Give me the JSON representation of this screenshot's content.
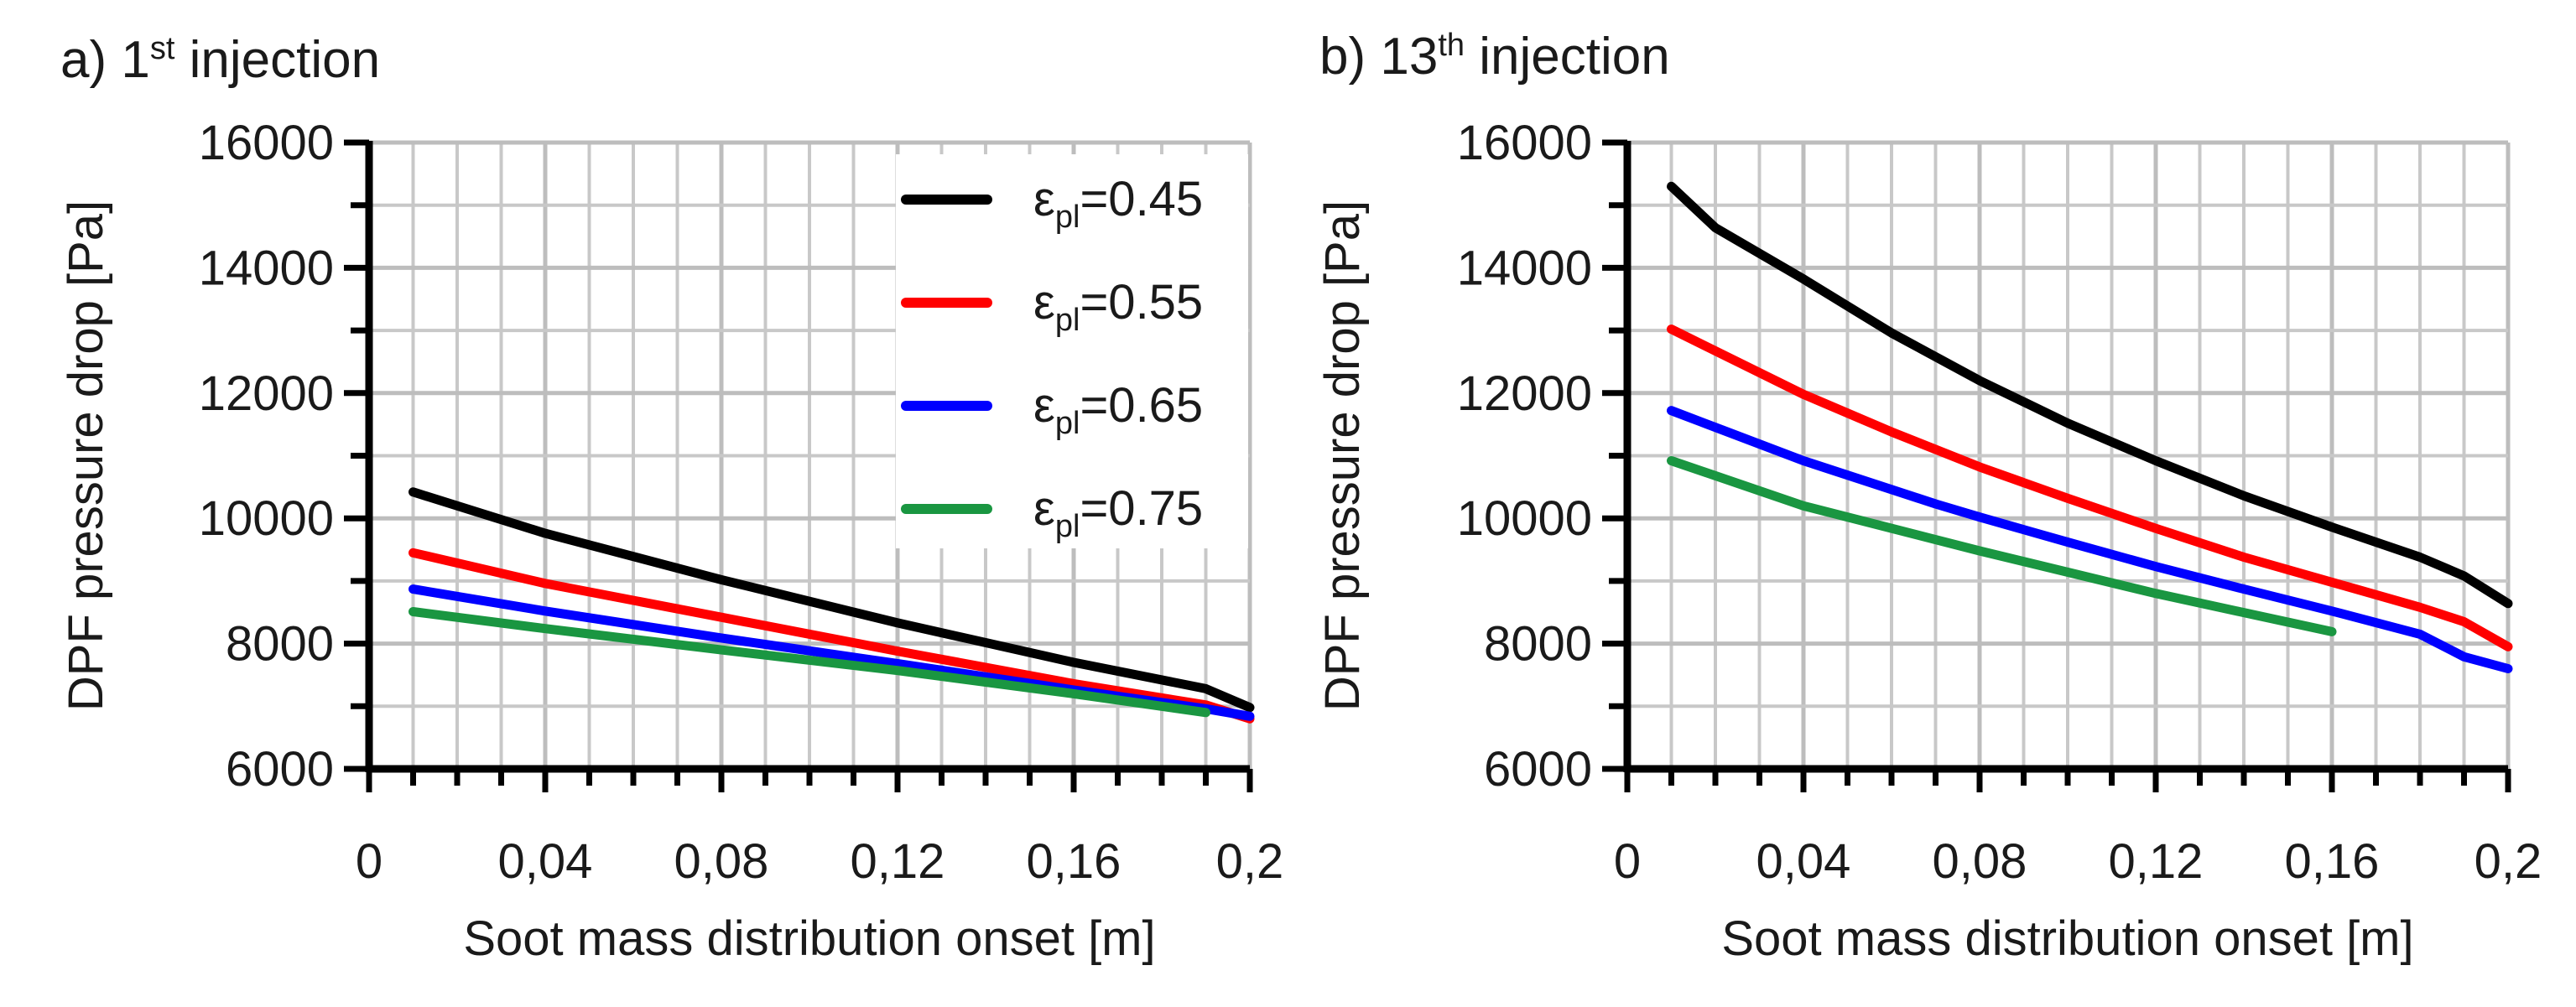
{
  "chart_data": [
    {
      "type": "line",
      "panel": "a",
      "title_prefix": "a) 1",
      "title_sup": "st",
      "title_suffix": " injection",
      "xlabel": "Soot mass distribution onset [m]",
      "ylabel": "DPF pressure drop [Pa]",
      "xlim": [
        0,
        0.2
      ],
      "ylim": [
        6000,
        16000
      ],
      "x_ticks": [
        "0",
        "0,04",
        "0,08",
        "0,12",
        "0,16",
        "0,2"
      ],
      "y_ticks": [
        "6000",
        "8000",
        "10000",
        "12000",
        "14000",
        "16000"
      ],
      "grid": true,
      "legend": "top-right",
      "legend_prefix": "ε",
      "legend_sub": "pl",
      "series": [
        {
          "name": "=0.45",
          "color": "#000000",
          "x": [
            0.01,
            0.04,
            0.08,
            0.12,
            0.16,
            0.19,
            0.2
          ],
          "y": [
            10420,
            9760,
            9020,
            8330,
            7700,
            7280,
            6980
          ]
        },
        {
          "name": "=0.55",
          "color": "#ff0000",
          "x": [
            0.01,
            0.04,
            0.08,
            0.12,
            0.16,
            0.19,
            0.2
          ],
          "y": [
            9450,
            8960,
            8420,
            7880,
            7360,
            7020,
            6800
          ]
        },
        {
          "name": "=0.65",
          "color": "#0000ff",
          "x": [
            0.01,
            0.04,
            0.08,
            0.12,
            0.16,
            0.19,
            0.2
          ],
          "y": [
            8870,
            8520,
            8090,
            7680,
            7260,
            6960,
            6840
          ]
        },
        {
          "name": "=0.75",
          "color": "#1a9641",
          "x": [
            0.01,
            0.04,
            0.08,
            0.12,
            0.16,
            0.19
          ],
          "y": [
            8510,
            8240,
            7900,
            7570,
            7200,
            6900
          ]
        }
      ]
    },
    {
      "type": "line",
      "panel": "b",
      "title_prefix": "b) 13",
      "title_sup": "th",
      "title_suffix": " injection",
      "xlabel": "Soot mass distribution onset [m]",
      "ylabel": "DPF pressure drop [Pa]",
      "xlim": [
        0,
        0.2
      ],
      "ylim": [
        6000,
        16000
      ],
      "x_ticks": [
        "0",
        "0,04",
        "0,08",
        "0,12",
        "0,16",
        "0,2"
      ],
      "y_ticks": [
        "6000",
        "8000",
        "10000",
        "12000",
        "14000",
        "16000"
      ],
      "grid": true,
      "series": [
        {
          "name": "=0.45",
          "color": "#000000",
          "x": [
            0.01,
            0.02,
            0.04,
            0.06,
            0.08,
            0.1,
            0.12,
            0.14,
            0.16,
            0.18,
            0.19,
            0.2
          ],
          "y": [
            15300,
            14640,
            13820,
            12960,
            12200,
            11520,
            10920,
            10360,
            9860,
            9380,
            9080,
            8640
          ]
        },
        {
          "name": "=0.55",
          "color": "#ff0000",
          "x": [
            0.01,
            0.04,
            0.06,
            0.08,
            0.1,
            0.12,
            0.14,
            0.16,
            0.18,
            0.19,
            0.2
          ],
          "y": [
            13020,
            11980,
            11380,
            10820,
            10320,
            9840,
            9380,
            8980,
            8580,
            8350,
            7950
          ]
        },
        {
          "name": "=0.65",
          "color": "#0000ff",
          "x": [
            0.01,
            0.04,
            0.07,
            0.08,
            0.1,
            0.12,
            0.14,
            0.16,
            0.18,
            0.19,
            0.2
          ],
          "y": [
            11720,
            10920,
            10230,
            10020,
            9620,
            9230,
            8870,
            8520,
            8150,
            7790,
            7600
          ]
        },
        {
          "name": "=0.75",
          "color": "#1a9641",
          "x": [
            0.01,
            0.04,
            0.08,
            0.12,
            0.16
          ],
          "y": [
            10920,
            10200,
            9480,
            8800,
            8190
          ]
        }
      ]
    }
  ]
}
